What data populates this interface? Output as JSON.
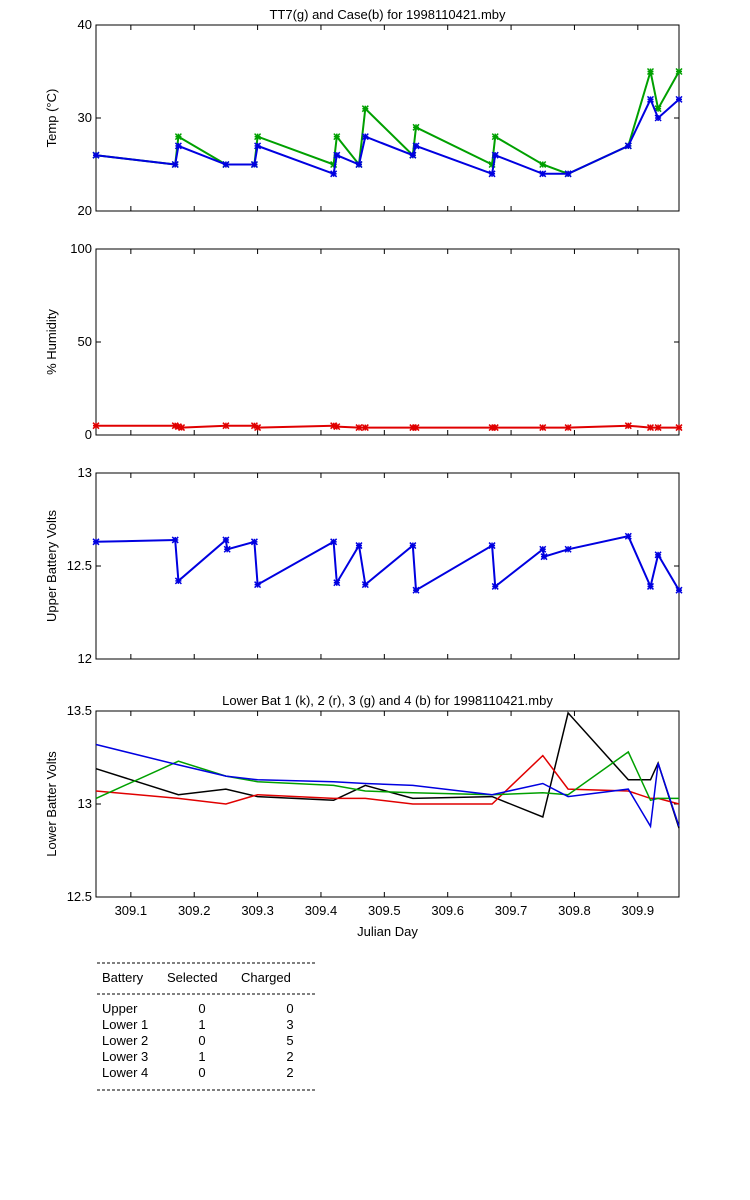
{
  "chart_data": [
    {
      "type": "line",
      "title": "TT7(g) and Case(b) for 1998110421.mby",
      "ylabel": "Temp  (°C)",
      "xlabel": "",
      "xlim": [
        309.045,
        309.965
      ],
      "ylim": [
        20,
        40
      ],
      "yticks": [
        "20",
        "30",
        "40"
      ],
      "yticks_values": [
        20,
        30,
        40
      ],
      "grid": false,
      "markers": true,
      "series": [
        {
          "color": "#00a000",
          "x": [
            309.045,
            309.17,
            309.175,
            309.25,
            309.295,
            309.3,
            309.42,
            309.425,
            309.46,
            309.47,
            309.545,
            309.55,
            309.67,
            309.675,
            309.75,
            309.79,
            309.885,
            309.92,
            309.932,
            309.965
          ],
          "y": [
            26,
            25,
            28,
            25,
            25,
            28,
            25,
            28,
            25,
            31,
            26,
            29,
            25,
            28,
            25,
            24,
            27,
            35,
            31,
            35
          ]
        },
        {
          "color": "#0000e0",
          "x": [
            309.045,
            309.17,
            309.175,
            309.25,
            309.295,
            309.3,
            309.42,
            309.425,
            309.46,
            309.47,
            309.545,
            309.55,
            309.67,
            309.675,
            309.75,
            309.79,
            309.885,
            309.92,
            309.932,
            309.965
          ],
          "y": [
            26,
            25,
            27,
            25,
            25,
            27,
            24,
            26,
            25,
            28,
            26,
            27,
            24,
            26,
            24,
            24,
            27,
            32,
            30,
            32
          ]
        }
      ]
    },
    {
      "type": "line",
      "title": "",
      "ylabel": "% Humidity",
      "xlabel": "",
      "xlim": [
        309.045,
        309.965
      ],
      "ylim": [
        0,
        100
      ],
      "yticks": [
        "0",
        "50",
        "100"
      ],
      "yticks_values": [
        0,
        50,
        100
      ],
      "grid": false,
      "markers": true,
      "series": [
        {
          "color": "#e00000",
          "x": [
            309.045,
            309.17,
            309.175,
            309.18,
            309.25,
            309.295,
            309.3,
            309.42,
            309.425,
            309.46,
            309.47,
            309.545,
            309.55,
            309.67,
            309.675,
            309.75,
            309.79,
            309.885,
            309.92,
            309.932,
            309.965
          ],
          "y": [
            5,
            5,
            4.5,
            4,
            5,
            5,
            4,
            5,
            4.5,
            4,
            4,
            4,
            4,
            4,
            4,
            4,
            4,
            5,
            4,
            4,
            4
          ]
        }
      ]
    },
    {
      "type": "line",
      "title": "",
      "ylabel": "Upper Battery Volts",
      "xlabel": "",
      "xlim": [
        309.045,
        309.965
      ],
      "ylim": [
        12,
        13
      ],
      "yticks": [
        "12",
        "12.5",
        "13"
      ],
      "yticks_values": [
        12,
        12.5,
        13
      ],
      "grid": false,
      "markers": true,
      "series": [
        {
          "color": "#0000e0",
          "x": [
            309.045,
            309.17,
            309.175,
            309.25,
            309.252,
            309.295,
            309.3,
            309.42,
            309.425,
            309.46,
            309.47,
            309.545,
            309.55,
            309.67,
            309.675,
            309.75,
            309.752,
            309.79,
            309.885,
            309.92,
            309.932,
            309.965
          ],
          "y": [
            12.63,
            12.64,
            12.42,
            12.64,
            12.59,
            12.63,
            12.4,
            12.63,
            12.41,
            12.61,
            12.4,
            12.61,
            12.37,
            12.61,
            12.39,
            12.59,
            12.55,
            12.59,
            12.66,
            12.39,
            12.56,
            12.37
          ]
        }
      ]
    },
    {
      "type": "line",
      "title": "Lower Bat 1 (k), 2 (r), 3 (g) and 4 (b) for 1998110421.mby",
      "ylabel": "Lower Batter Volts",
      "xlabel": "Julian Day",
      "xlim": [
        309.045,
        309.965
      ],
      "ylim": [
        12.5,
        13.5
      ],
      "yticks": [
        "12.5",
        "13",
        "13.5"
      ],
      "yticks_values": [
        12.5,
        13,
        13.5
      ],
      "xticks": [
        "309.1",
        "309.2",
        "309.3",
        "309.4",
        "309.5",
        "309.6",
        "309.7",
        "309.8",
        "309.9"
      ],
      "xticks_values": [
        309.1,
        309.2,
        309.3,
        309.4,
        309.5,
        309.6,
        309.7,
        309.8,
        309.9
      ],
      "grid": false,
      "markers": false,
      "series": [
        {
          "color": "#000000",
          "x": [
            309.045,
            309.175,
            309.25,
            309.3,
            309.42,
            309.47,
            309.545,
            309.67,
            309.75,
            309.79,
            309.885,
            309.92,
            309.932,
            309.965
          ],
          "y": [
            13.19,
            13.05,
            13.08,
            13.04,
            13.02,
            13.1,
            13.03,
            13.04,
            12.93,
            13.49,
            13.13,
            13.13,
            13.22,
            12.87
          ]
        },
        {
          "color": "#e00000",
          "x": [
            309.045,
            309.175,
            309.25,
            309.3,
            309.42,
            309.47,
            309.545,
            309.67,
            309.75,
            309.79,
            309.885,
            309.92,
            309.932,
            309.965
          ],
          "y": [
            13.07,
            13.03,
            13.0,
            13.05,
            13.03,
            13.03,
            13.0,
            13.0,
            13.26,
            13.08,
            13.07,
            13.03,
            13.03,
            13.0
          ]
        },
        {
          "color": "#00a000",
          "x": [
            309.045,
            309.175,
            309.25,
            309.3,
            309.42,
            309.47,
            309.545,
            309.67,
            309.75,
            309.79,
            309.885,
            309.92,
            309.932,
            309.965
          ],
          "y": [
            13.03,
            13.23,
            13.15,
            13.12,
            13.1,
            13.07,
            13.06,
            13.05,
            13.06,
            13.05,
            13.28,
            13.02,
            13.03,
            13.03
          ]
        },
        {
          "color": "#0000e0",
          "x": [
            309.045,
            309.175,
            309.25,
            309.3,
            309.42,
            309.47,
            309.545,
            309.67,
            309.75,
            309.79,
            309.885,
            309.92,
            309.932,
            309.965
          ],
          "y": [
            13.32,
            13.21,
            13.15,
            13.13,
            13.12,
            13.11,
            13.1,
            13.05,
            13.11,
            13.04,
            13.08,
            12.88,
            13.22,
            12.88
          ]
        }
      ]
    }
  ],
  "battery_table": {
    "headers": [
      "Battery",
      "Selected",
      "Charged"
    ],
    "rows": [
      [
        "Upper",
        "0",
        "0"
      ],
      [
        "Lower 1",
        "1",
        "3"
      ],
      [
        "Lower 2",
        "0",
        "5"
      ],
      [
        "Lower 3",
        "1",
        "2"
      ],
      [
        "Lower 4",
        "0",
        "2"
      ]
    ]
  }
}
